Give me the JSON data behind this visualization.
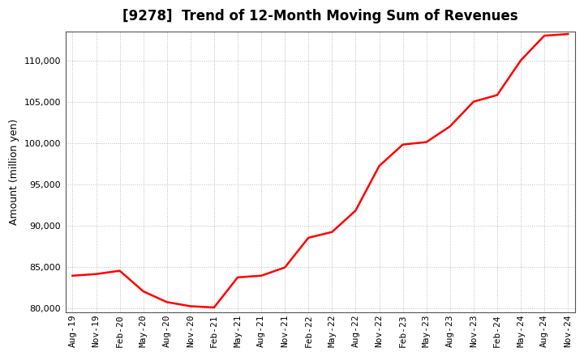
{
  "title": "[9278]  Trend of 12-Month Moving Sum of Revenues",
  "ylabel": "Amount (million yen)",
  "background_color": "#ffffff",
  "plot_background_color": "#ffffff",
  "line_color": "#ff0000",
  "line_width": 1.8,
  "grid_color": "#bbbbbb",
  "ylim": [
    79500,
    113500
  ],
  "yticks": [
    80000,
    85000,
    90000,
    95000,
    100000,
    105000,
    110000
  ],
  "x_labels": [
    "Aug-19",
    "Nov-19",
    "Feb-20",
    "May-20",
    "Aug-20",
    "Nov-20",
    "Feb-21",
    "May-21",
    "Aug-21",
    "Nov-21",
    "Feb-22",
    "May-22",
    "Aug-22",
    "Nov-22",
    "Feb-23",
    "May-23",
    "Aug-23",
    "Nov-23",
    "Feb-24",
    "May-24",
    "Aug-24",
    "Nov-24"
  ],
  "data_points": [
    83900,
    84100,
    84500,
    82000,
    80700,
    80200,
    80050,
    83700,
    83900,
    84900,
    88500,
    89200,
    91800,
    97200,
    99800,
    100100,
    102000,
    105000,
    105800,
    110000,
    113000,
    113200
  ],
  "title_fontsize": 12,
  "tick_fontsize": 8,
  "ylabel_fontsize": 9
}
